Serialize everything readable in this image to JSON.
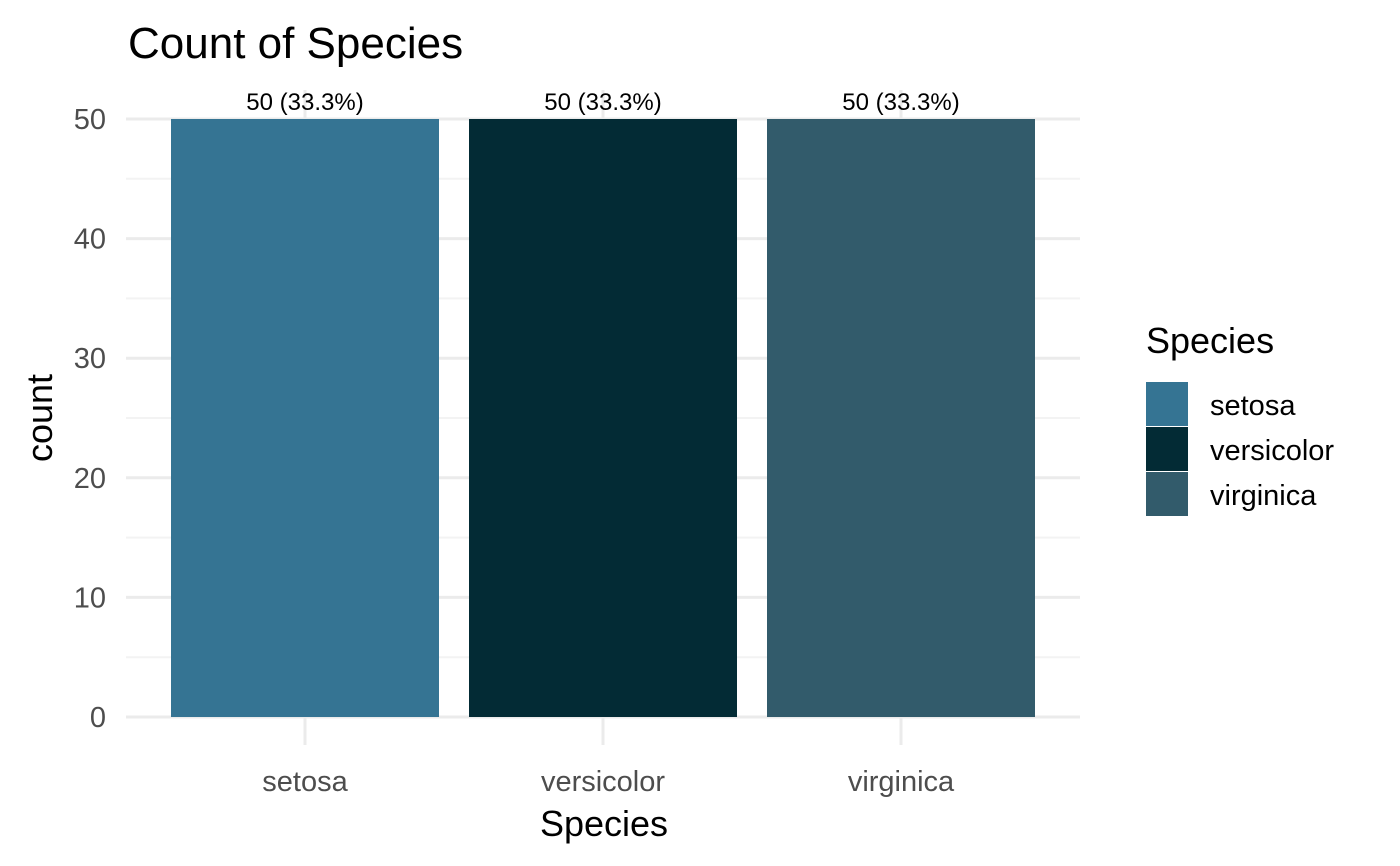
{
  "chart_data": {
    "type": "bar",
    "title": "Count of Species",
    "xlabel": "Species",
    "ylabel": "count",
    "categories": [
      "setosa",
      "versicolor",
      "virginica"
    ],
    "values": [
      50,
      50,
      50
    ],
    "data_labels": [
      "50 (33.3%)",
      "50 (33.3%)",
      "50 (33.3%)"
    ],
    "colors": [
      "#357493",
      "#032b35",
      "#325b6b"
    ],
    "ylim": [
      0,
      50
    ],
    "yticks": [
      0,
      10,
      20,
      30,
      40,
      50
    ],
    "grid": true,
    "legend": {
      "title": "Species",
      "position": "right",
      "entries": [
        "setosa",
        "versicolor",
        "virginica"
      ]
    }
  }
}
